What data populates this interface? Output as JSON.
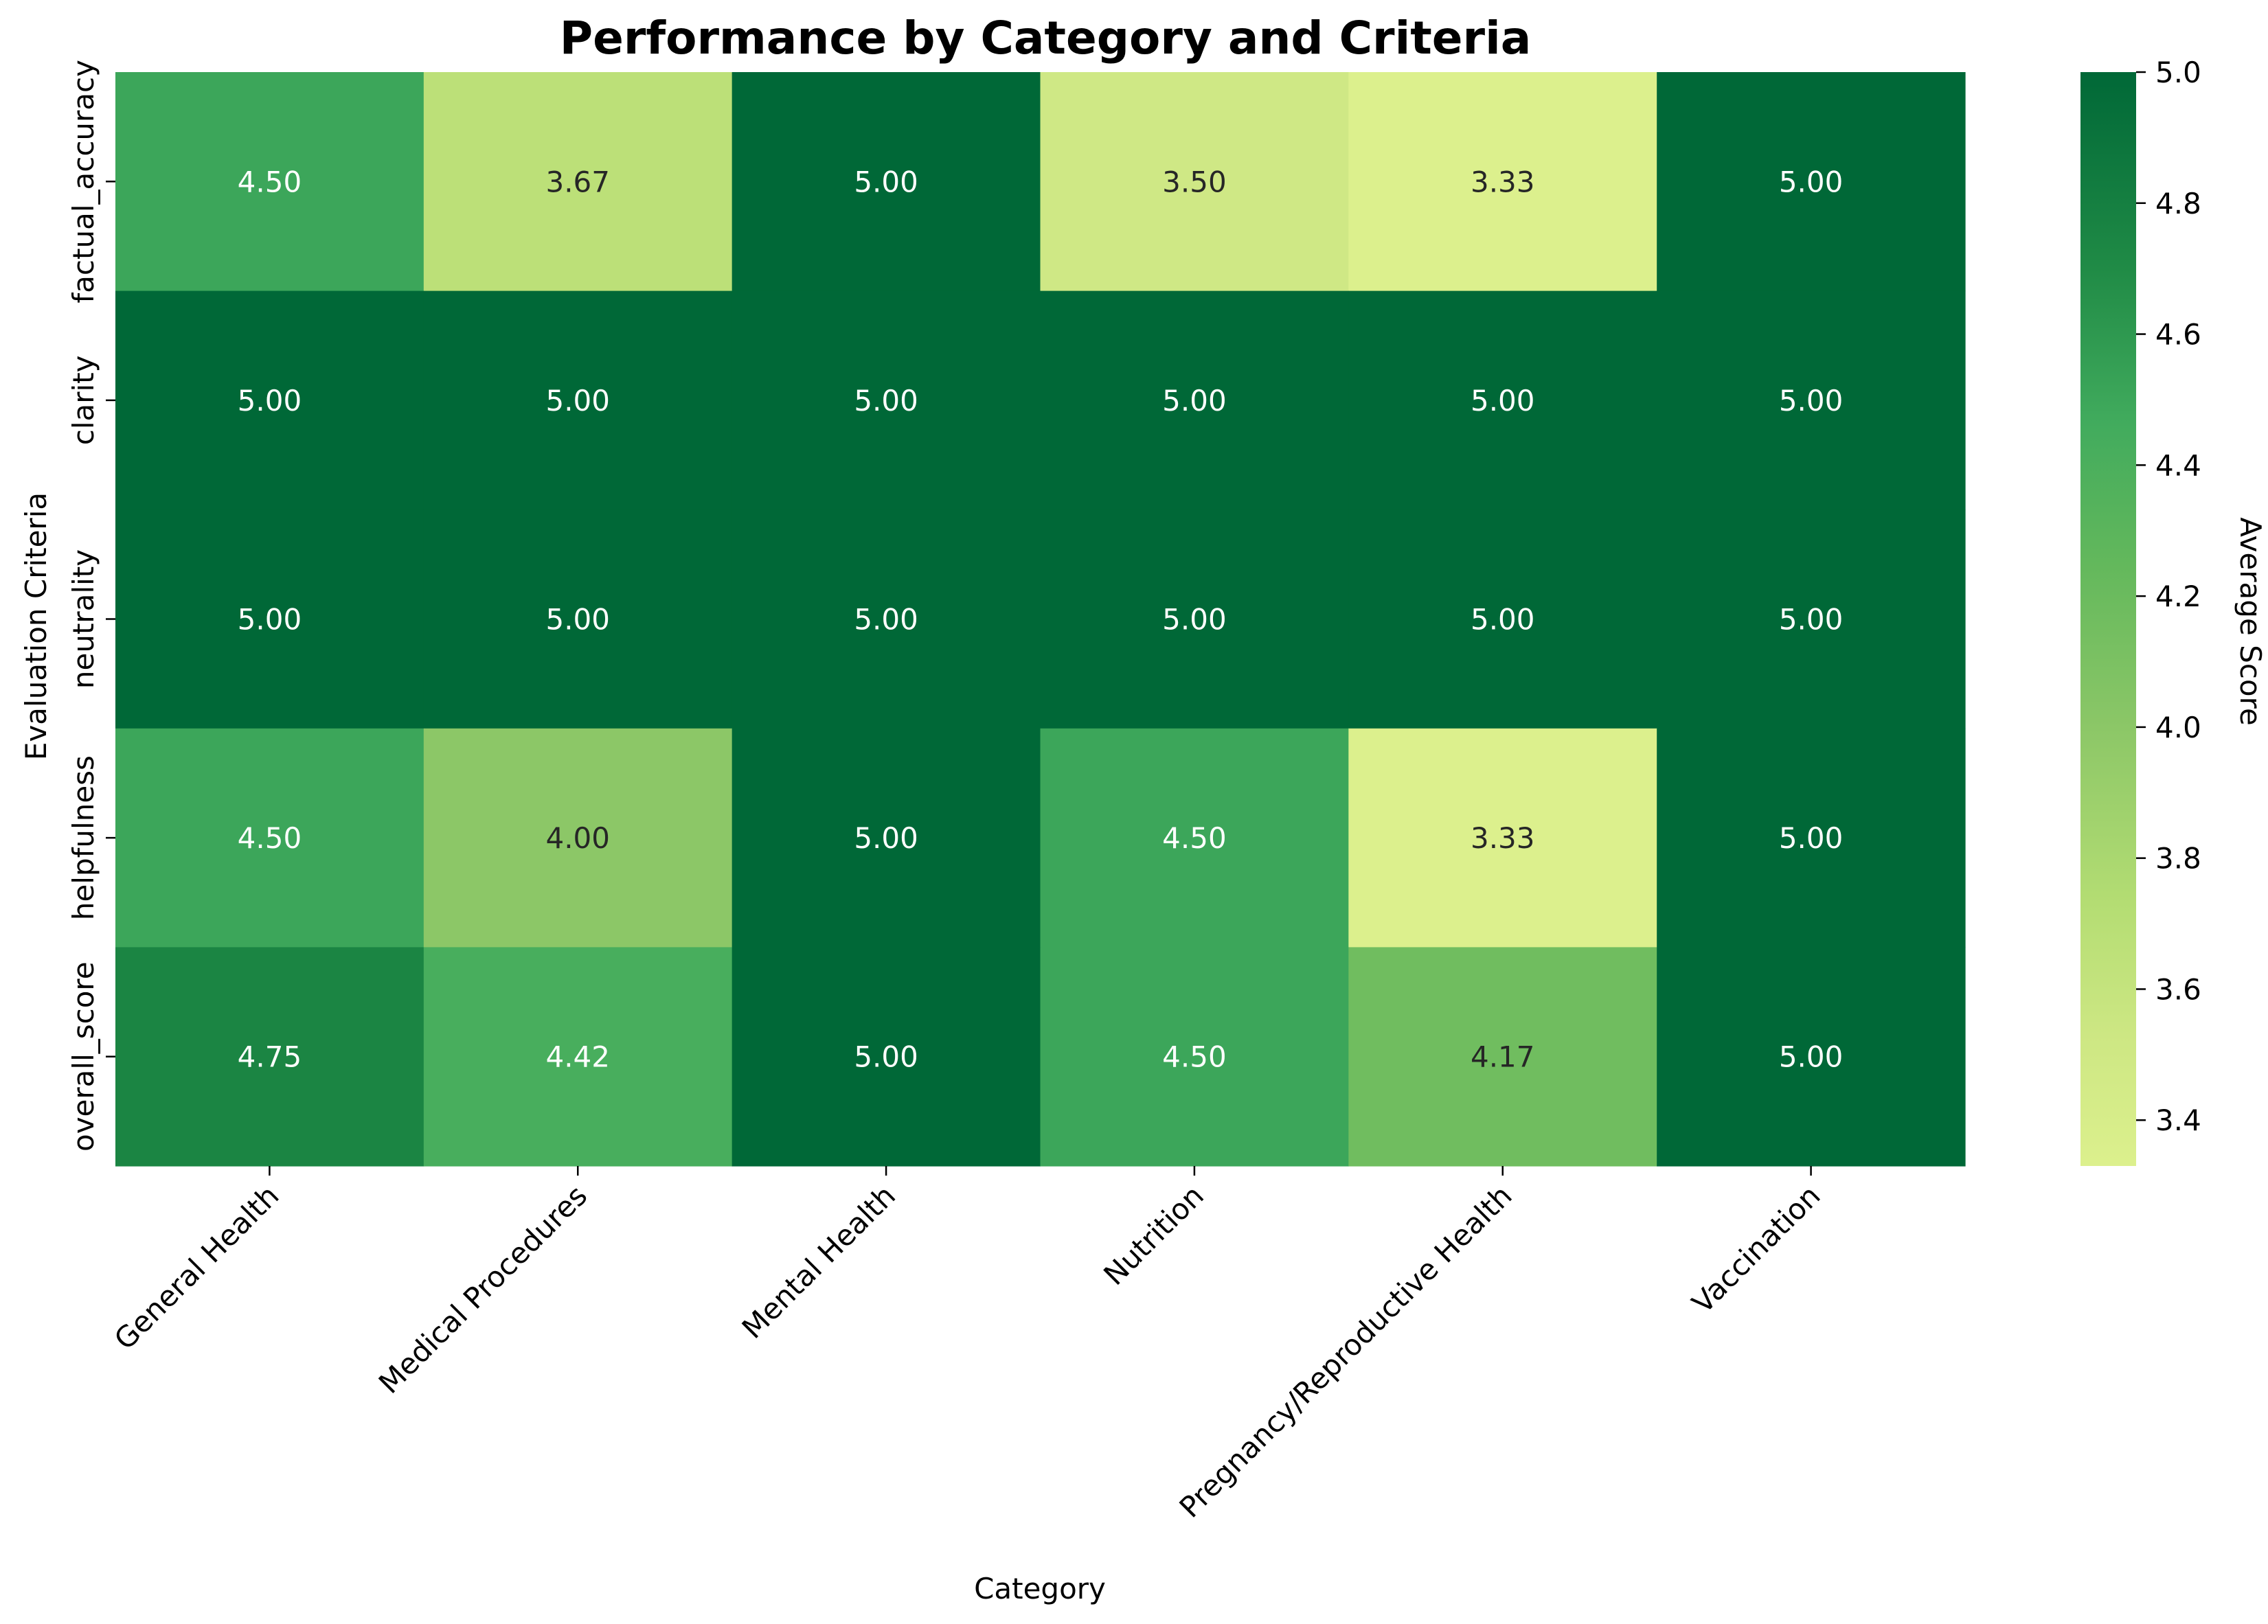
{
  "chart_data": {
    "type": "heatmap",
    "title": "Performance by Category and Criteria",
    "xlabel": "Category",
    "ylabel": "Evaluation Criteria",
    "x_categories": [
      "General Health",
      "Medical Procedures",
      "Mental Health",
      "Nutrition",
      "Pregnancy/Reproductive Health",
      "Vaccination"
    ],
    "y_categories": [
      "factual_accuracy",
      "clarity",
      "neutrality",
      "helpfulness",
      "overall_score"
    ],
    "values": [
      [
        4.5,
        3.67,
        5.0,
        3.5,
        3.33,
        5.0
      ],
      [
        5.0,
        5.0,
        5.0,
        5.0,
        5.0,
        5.0
      ],
      [
        5.0,
        5.0,
        5.0,
        5.0,
        5.0,
        5.0
      ],
      [
        4.5,
        4.0,
        5.0,
        4.5,
        3.33,
        5.0
      ],
      [
        4.75,
        4.42,
        5.0,
        4.5,
        4.17,
        5.0
      ]
    ],
    "cell_labels": [
      [
        "4.50",
        "3.67",
        "5.00",
        "3.50",
        "3.33",
        "5.00"
      ],
      [
        "5.00",
        "5.00",
        "5.00",
        "5.00",
        "5.00",
        "5.00"
      ],
      [
        "5.00",
        "5.00",
        "5.00",
        "5.00",
        "5.00",
        "5.00"
      ],
      [
        "4.50",
        "4.00",
        "5.00",
        "4.50",
        "3.33",
        "5.00"
      ],
      [
        "4.75",
        "4.42",
        "5.00",
        "4.50",
        "4.17",
        "5.00"
      ]
    ],
    "colorbar": {
      "label": "Average Score",
      "min": 3.33,
      "max": 5.0,
      "ticks": [
        3.4,
        3.6,
        3.8,
        4.0,
        4.2,
        4.4,
        4.6,
        4.8,
        5.0
      ],
      "tick_labels": [
        "3.4",
        "3.6",
        "3.8",
        "4.0",
        "4.2",
        "4.4",
        "4.6",
        "4.8",
        "5.0"
      ]
    },
    "colormap": "YlGn",
    "grid": false,
    "legend": "colorbar-right"
  }
}
